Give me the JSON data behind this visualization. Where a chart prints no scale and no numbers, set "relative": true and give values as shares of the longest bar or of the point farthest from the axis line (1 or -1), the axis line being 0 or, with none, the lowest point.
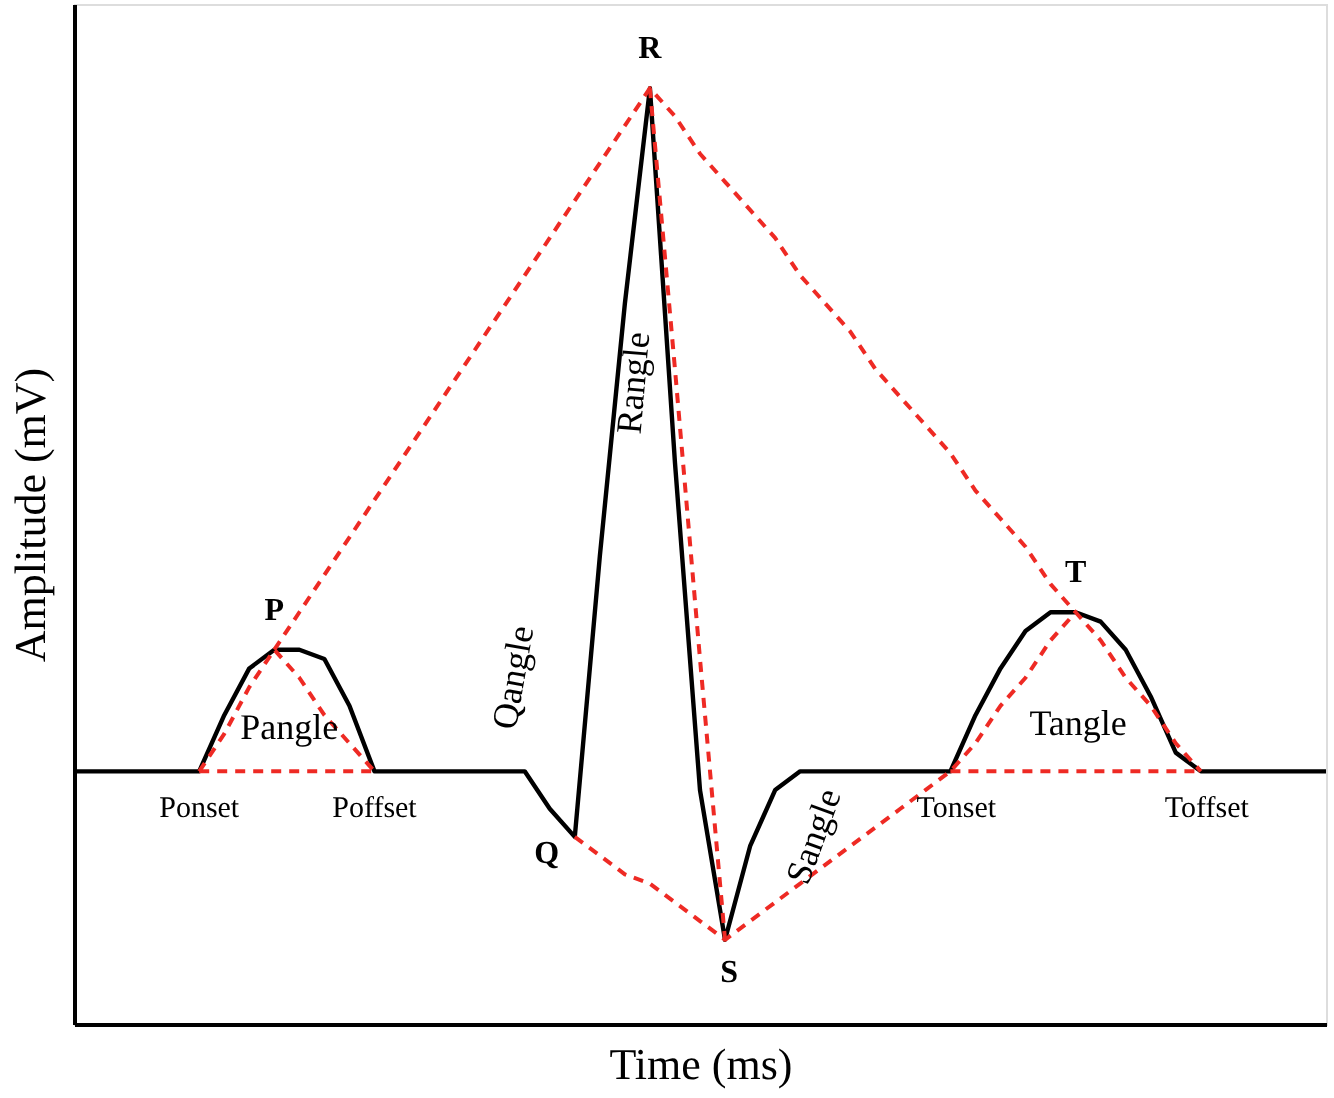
{
  "chart_data": {
    "type": "line",
    "relative": true,
    "tick_labels": false,
    "xlabel": "Time (ms)",
    "ylabel": "Amplitude (mV)",
    "categories": [
      null,
      null,
      null,
      null,
      null,
      null,
      null,
      null,
      null,
      null,
      null,
      null,
      null,
      null,
      null,
      null,
      null,
      null,
      null,
      null,
      null,
      null,
      null,
      null,
      null,
      null,
      null,
      null,
      null,
      null,
      null,
      null,
      null,
      null,
      null,
      null,
      null,
      null,
      null,
      null,
      null,
      null,
      null,
      null,
      null,
      null,
      null,
      null,
      null,
      null,
      null
    ],
    "series": [
      {
        "color": "#000000",
        "line_style": "solid",
        "values": [
          0.27,
          0.27,
          0.27,
          0.27,
          0.27,
          0.27,
          0.33,
          0.38,
          0.4,
          0.4,
          0.39,
          0.34,
          0.27,
          0.27,
          0.27,
          0.27,
          0.27,
          0.27,
          0.27,
          0.23,
          0.2,
          0.5,
          0.77,
          1.0,
          0.6,
          0.25,
          0.09,
          0.19,
          0.25,
          0.27,
          0.27,
          0.27,
          0.27,
          0.27,
          0.27,
          0.27,
          0.33,
          0.38,
          0.42,
          0.44,
          0.44,
          0.43,
          0.4,
          0.35,
          0.29,
          0.27,
          0.27,
          0.27,
          0.27,
          0.27,
          0.27
        ]
      },
      {
        "color": "#ee2a24",
        "line_style": "dashed",
        "values": [
          null,
          null,
          null,
          null,
          null,
          0.27,
          0.27,
          0.27,
          0.27,
          0.27,
          0.27,
          0.27,
          0.27,
          null,
          null,
          null,
          null,
          null,
          null,
          null,
          null,
          null,
          null,
          null,
          null,
          null,
          null,
          null,
          null,
          null,
          null,
          null,
          null,
          null,
          null,
          null,
          null,
          null,
          null,
          null,
          null,
          null,
          null,
          null,
          null,
          null,
          null,
          null,
          null,
          null,
          null
        ]
      },
      {
        "color": "#ee2a24",
        "line_style": "dashed",
        "values": [
          null,
          null,
          null,
          null,
          null,
          0.27,
          0.31,
          0.36,
          0.4,
          0.37,
          0.33,
          0.3,
          0.27,
          null,
          null,
          null,
          null,
          null,
          null,
          null,
          null,
          null,
          null,
          null,
          null,
          null,
          null,
          null,
          null,
          null,
          null,
          null,
          null,
          null,
          null,
          null,
          null,
          null,
          null,
          null,
          null,
          null,
          null,
          null,
          null,
          null,
          null,
          null,
          null,
          null,
          null
        ]
      },
      {
        "color": "#ee2a24",
        "line_style": "dashed",
        "values": [
          null,
          null,
          null,
          null,
          null,
          null,
          null,
          null,
          0.4,
          0.44,
          0.48,
          0.52,
          0.56,
          0.6,
          0.64,
          0.68,
          0.72,
          0.76,
          0.8,
          0.84,
          0.88,
          0.92,
          0.96,
          1.0,
          0.97,
          0.93,
          0.9,
          0.87,
          0.84,
          0.8,
          0.77,
          0.74,
          0.7,
          0.67,
          0.64,
          0.61,
          0.57,
          0.54,
          0.51,
          0.47,
          0.44,
          null,
          null,
          null,
          null,
          null,
          null,
          null,
          null,
          null,
          null
        ]
      },
      {
        "color": "#ee2a24",
        "line_style": "dashed",
        "values": [
          null,
          null,
          null,
          null,
          null,
          null,
          null,
          null,
          null,
          null,
          null,
          null,
          null,
          null,
          null,
          null,
          null,
          null,
          null,
          null,
          0.2,
          0.18,
          0.16,
          0.15,
          0.13,
          0.11,
          0.09,
          0.11,
          0.13,
          0.15,
          0.17,
          0.19,
          0.21,
          0.23,
          0.25,
          0.27,
          0.3,
          0.34,
          0.37,
          0.41,
          0.44,
          0.41,
          0.37,
          0.34,
          0.3,
          0.27,
          null,
          null,
          null,
          null,
          null
        ]
      },
      {
        "color": "#ee2a24",
        "line_style": "dashed",
        "values": [
          null,
          null,
          null,
          null,
          null,
          null,
          null,
          null,
          null,
          null,
          null,
          null,
          null,
          null,
          null,
          null,
          null,
          null,
          null,
          null,
          null,
          null,
          null,
          1.0,
          0.7,
          0.39,
          0.09,
          null,
          null,
          null,
          null,
          null,
          null,
          null,
          null,
          null,
          null,
          null,
          null,
          null,
          null,
          null,
          null,
          null,
          null,
          null,
          null,
          null,
          null,
          null,
          null
        ]
      },
      {
        "color": "#ee2a24",
        "line_style": "dashed",
        "values": [
          null,
          null,
          null,
          null,
          null,
          null,
          null,
          null,
          null,
          null,
          null,
          null,
          null,
          null,
          null,
          null,
          null,
          null,
          null,
          null,
          null,
          null,
          null,
          null,
          null,
          null,
          null,
          null,
          null,
          null,
          null,
          null,
          null,
          null,
          null,
          0.27,
          0.27,
          0.27,
          0.27,
          0.27,
          0.27,
          0.27,
          0.27,
          0.27,
          0.27,
          0.27,
          null,
          null,
          null,
          null,
          null
        ]
      }
    ],
    "annotations": [
      "R",
      "P",
      "T",
      "Q",
      "S",
      "Ponset",
      "Poffset",
      "Tonset",
      "Toffset",
      "Pangle",
      "Qangle",
      "Rangle",
      "Sangle",
      "Tangle"
    ]
  }
}
